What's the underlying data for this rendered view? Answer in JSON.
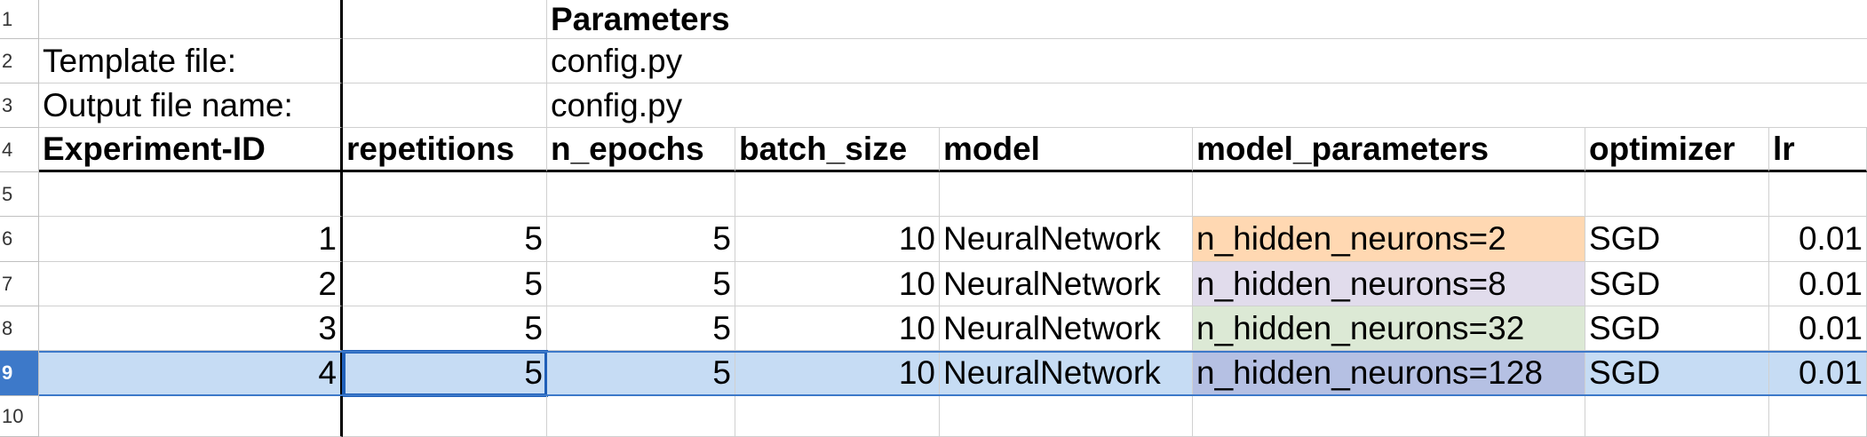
{
  "sheet": {
    "row_numbers": [
      "1",
      "2",
      "3",
      "4",
      "5",
      "6",
      "7",
      "8",
      "9",
      "10"
    ],
    "selected_row": "9",
    "r1": {
      "c": "Parameters"
    },
    "r2": {
      "a": "Template file:",
      "c": "config.py"
    },
    "r3": {
      "a": "Output file name:",
      "c": "config.py"
    },
    "headers": [
      "Experiment-ID",
      "repetitions",
      "n_epochs",
      "batch_size",
      "model",
      "model_parameters",
      "optimizer",
      "lr"
    ],
    "rows": [
      [
        "1",
        "5",
        "5",
        "10",
        "NeuralNetwork",
        "n_hidden_neurons=2",
        "SGD",
        "0.01"
      ],
      [
        "2",
        "5",
        "5",
        "10",
        "NeuralNetwork",
        "n_hidden_neurons=8",
        "SGD",
        "0.01"
      ],
      [
        "3",
        "5",
        "5",
        "10",
        "NeuralNetwork",
        "n_hidden_neurons=32",
        "SGD",
        "0.01"
      ],
      [
        "4",
        "5",
        "5",
        "10",
        "NeuralNetwork",
        "n_hidden_neurons=128",
        "SGD",
        "0.01"
      ]
    ],
    "colors": {
      "param_row1": "#ffd8b2",
      "param_row2": "#e1dcec",
      "param_row3": "#dce9d5",
      "selection": "#c6dcf4",
      "selection_header": "#3d79c9"
    }
  }
}
